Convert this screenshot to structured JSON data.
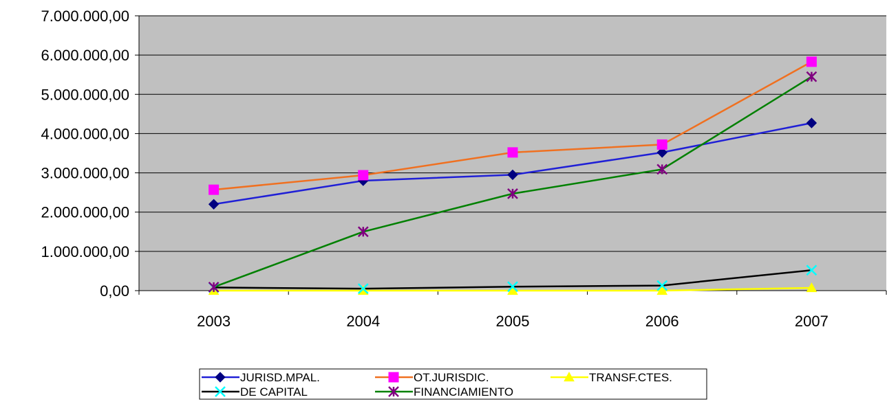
{
  "chart_data": {
    "type": "line",
    "categories": [
      "2003",
      "2004",
      "2005",
      "2006",
      "2007"
    ],
    "ylim": [
      0,
      7000000
    ],
    "yticks": [
      "0,00",
      "1.000.000,00",
      "2.000.000,00",
      "3.000.000,00",
      "4.000.000,00",
      "5.000.000,00",
      "6.000.000,00",
      "7.000.000,00"
    ],
    "ytick_values": [
      0,
      1000000,
      2000000,
      3000000,
      4000000,
      5000000,
      6000000,
      7000000
    ],
    "grid": true,
    "plot_background": "#c0c0c0",
    "legend_position": "bottom",
    "series": [
      {
        "name": "JURISD.MPAL.",
        "line_color": "#1f1fd6",
        "marker_color": "#000080",
        "marker": "diamond",
        "values": [
          2200000,
          2800000,
          2950000,
          3520000,
          4270000
        ]
      },
      {
        "name": "OT.JURISDIC.",
        "line_color": "#f07020",
        "marker_color": "#ff00ff",
        "marker": "square",
        "values": [
          2570000,
          2940000,
          3520000,
          3720000,
          5830000
        ]
      },
      {
        "name": "TRANSF.CTES.",
        "line_color": "#ffff00",
        "marker_color": "#ffff00",
        "marker": "triangle",
        "values": [
          0,
          0,
          0,
          0,
          70000
        ]
      },
      {
        "name": "DE CAPITAL",
        "line_color": "#000000",
        "marker_color": "#00ffff",
        "marker": "x",
        "values": [
          80000,
          50000,
          100000,
          130000,
          520000
        ]
      },
      {
        "name": "FINANCIAMIENTO",
        "line_color": "#008000",
        "marker_color": "#800080",
        "marker": "star",
        "values": [
          90000,
          1500000,
          2470000,
          3090000,
          5450000
        ]
      }
    ]
  }
}
